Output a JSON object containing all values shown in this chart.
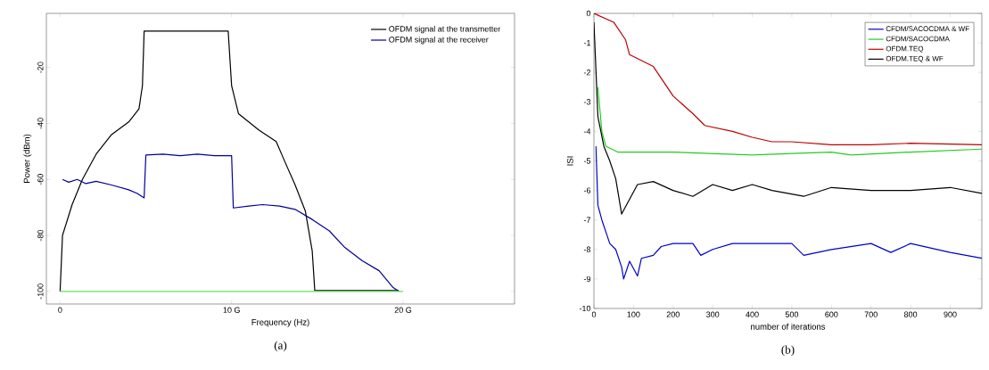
{
  "chart_data": [
    {
      "type": "line",
      "xlabel": "Frequency (Hz)",
      "ylabel": "Power (dBm)",
      "xlim": [
        -0.8,
        26.5
      ],
      "ylim": [
        -104.5,
        -0.7
      ],
      "xticks": [
        0,
        {
          "value": 10,
          "label": "10 G"
        },
        {
          "value": 20,
          "label": "20 G"
        }
      ],
      "yticks": [
        -100,
        -80,
        -60,
        -40,
        -20
      ],
      "legend": "top right",
      "grid": false,
      "annotations": [
        "(a)"
      ],
      "series": [
        {
          "name": "OFDM signal at the transmetter",
          "color": "#000000",
          "x": [
            0,
            0.14,
            0.7,
            1.3,
            2.1,
            3,
            4,
            4.6,
            4.8,
            4.9,
            6,
            7,
            8,
            9,
            9.8,
            10.0,
            10.4,
            11.6,
            12.6,
            13.1,
            13.7,
            14.3,
            14.7,
            14.85,
            19.75
          ],
          "values": [
            -100,
            -80,
            -69,
            -60,
            -51,
            -44,
            -39.5,
            -34.8,
            -26.5,
            -7,
            -7,
            -7,
            -7,
            -7,
            -7,
            -26.5,
            -36.5,
            -42.4,
            -46.5,
            -53.6,
            -61.9,
            -71.3,
            -85.5,
            -99.7,
            -99.7
          ]
        },
        {
          "name": "OFDM signal at the receiver",
          "color": "#000099",
          "x": [
            0.14,
            0.5,
            1,
            1.5,
            2.1,
            3,
            4,
            4.5,
            4.9,
            5,
            6,
            7,
            8,
            9,
            10,
            10.1,
            11,
            11.8,
            12.8,
            13.7,
            14.7,
            15.7,
            16.6,
            17.6,
            18.6,
            19.4,
            19.75
          ],
          "values": [
            -60,
            -61,
            -60,
            -61.5,
            -60.7,
            -62,
            -63.7,
            -65,
            -66.6,
            -51.3,
            -51,
            -51.5,
            -51,
            -51.5,
            -51.5,
            -70.2,
            -69.5,
            -69,
            -69.5,
            -70.7,
            -74.3,
            -78.4,
            -84.3,
            -89,
            -92.6,
            -98.5,
            -100
          ]
        },
        {
          "color": "#66dd66",
          "x": [
            0,
            20
          ],
          "values": [
            -100,
            -100
          ]
        }
      ]
    },
    {
      "type": "line",
      "xlabel": "number of iterations",
      "ylabel": "ISI",
      "xlim": [
        0,
        980
      ],
      "ylim": [
        -10,
        0
      ],
      "xticks": [
        0,
        100,
        200,
        300,
        400,
        500,
        600,
        700,
        800,
        900
      ],
      "yticks": [
        -10,
        -9,
        -8,
        -7,
        -6,
        -5,
        -4,
        -3,
        -2,
        -1,
        0
      ],
      "legend": "top right",
      "grid": false,
      "annotations": [
        "(b)"
      ],
      "series": [
        {
          "name": "CFDM/SACOCDMA & WF",
          "color": "#0000cc",
          "x": [
            5,
            10,
            20,
            40,
            55,
            70,
            75,
            90,
            110,
            120,
            150,
            170,
            200,
            250,
            270,
            300,
            350,
            400,
            500,
            530,
            600,
            700,
            750,
            800,
            900,
            980
          ],
          "values": [
            -4.5,
            -6.5,
            -7.0,
            -7.8,
            -8.0,
            -8.6,
            -9.0,
            -8.4,
            -8.9,
            -8.3,
            -8.2,
            -7.9,
            -7.8,
            -7.8,
            -8.2,
            -8.0,
            -7.8,
            -7.8,
            -7.8,
            -8.2,
            -8.0,
            -7.8,
            -8.1,
            -7.8,
            -8.1,
            -8.3
          ]
        },
        {
          "name": "CFDM/SACOCDMA",
          "color": "#22cc22",
          "x": [
            10,
            20,
            30,
            60,
            200,
            400,
            500,
            600,
            650,
            800,
            980
          ],
          "values": [
            -2.5,
            -4.0,
            -4.5,
            -4.7,
            -4.7,
            -4.8,
            -4.75,
            -4.7,
            -4.8,
            -4.7,
            -4.6
          ]
        },
        {
          "name": "OFDM.TEQ",
          "color": "#bb0000",
          "x": [
            0,
            50,
            80,
            90,
            150,
            200,
            250,
            280,
            350,
            400,
            450,
            500,
            600,
            700,
            800,
            980
          ],
          "values": [
            0,
            -0.3,
            -0.9,
            -1.4,
            -1.8,
            -2.8,
            -3.4,
            -3.8,
            -4.0,
            -4.2,
            -4.35,
            -4.35,
            -4.45,
            -4.45,
            -4.4,
            -4.45
          ]
        },
        {
          "name": "OFDM.TEQ & WF",
          "color": "#000000",
          "x": [
            0,
            10,
            25,
            40,
            55,
            65,
            70,
            90,
            110,
            150,
            200,
            250,
            300,
            350,
            400,
            450,
            530,
            600,
            700,
            800,
            900,
            980
          ],
          "values": [
            -0.3,
            -3.5,
            -4.5,
            -5.0,
            -5.6,
            -6.4,
            -6.8,
            -6.3,
            -5.8,
            -5.7,
            -6.0,
            -6.2,
            -5.8,
            -6.0,
            -5.8,
            -6.0,
            -6.2,
            -5.9,
            -6.0,
            -6.0,
            -5.9,
            -6.1
          ]
        }
      ]
    }
  ]
}
